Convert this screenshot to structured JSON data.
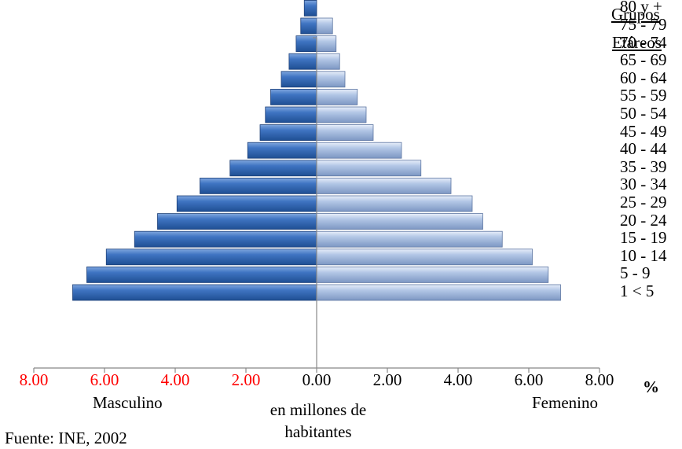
{
  "chart_data": {
    "type": "bar",
    "orientation": "horizontal-population-pyramid",
    "categories": [
      "1 < 5",
      "5 - 9",
      "10 - 14",
      "15 - 19",
      "20 - 24",
      "25 - 29",
      "30 - 34",
      "35 - 39",
      "40 - 44",
      "45 - 49",
      "50 - 54",
      "55 - 59",
      "60 - 64",
      "65 - 69",
      "70 - 74",
      "75 - 79",
      "80 y +"
    ],
    "series": [
      {
        "name": "Masculino",
        "side": "left",
        "color": "#3a6fbd",
        "values": [
          6.9,
          6.5,
          5.95,
          5.15,
          4.5,
          3.95,
          3.3,
          2.45,
          1.95,
          1.6,
          1.45,
          1.3,
          1.0,
          0.78,
          0.58,
          0.45,
          0.35
        ]
      },
      {
        "name": "Femenino",
        "side": "right",
        "color": "#a9bfe0",
        "values": [
          6.9,
          6.55,
          6.1,
          5.25,
          4.7,
          4.4,
          3.8,
          2.95,
          2.4,
          1.6,
          1.4,
          1.15,
          0.8,
          0.65,
          0.55,
          0.45,
          0.0
        ]
      }
    ],
    "x_tick_labels": [
      "8.00",
      "6.00",
      "4.00",
      "2.00",
      "0.00",
      "2.00",
      "4.00",
      "6.00",
      "8.00"
    ],
    "xlim": [
      -8,
      8
    ],
    "left_tick_color": "#ff0000",
    "percent_symbol": "%",
    "legend_left": "Masculino",
    "legend_right": "Femenino",
    "xlabel": "en millones de habitantes",
    "category_title_line1": "Grupos",
    "category_title_line2": "Etáreos"
  },
  "source_note": "Fuente: INE, 2002"
}
